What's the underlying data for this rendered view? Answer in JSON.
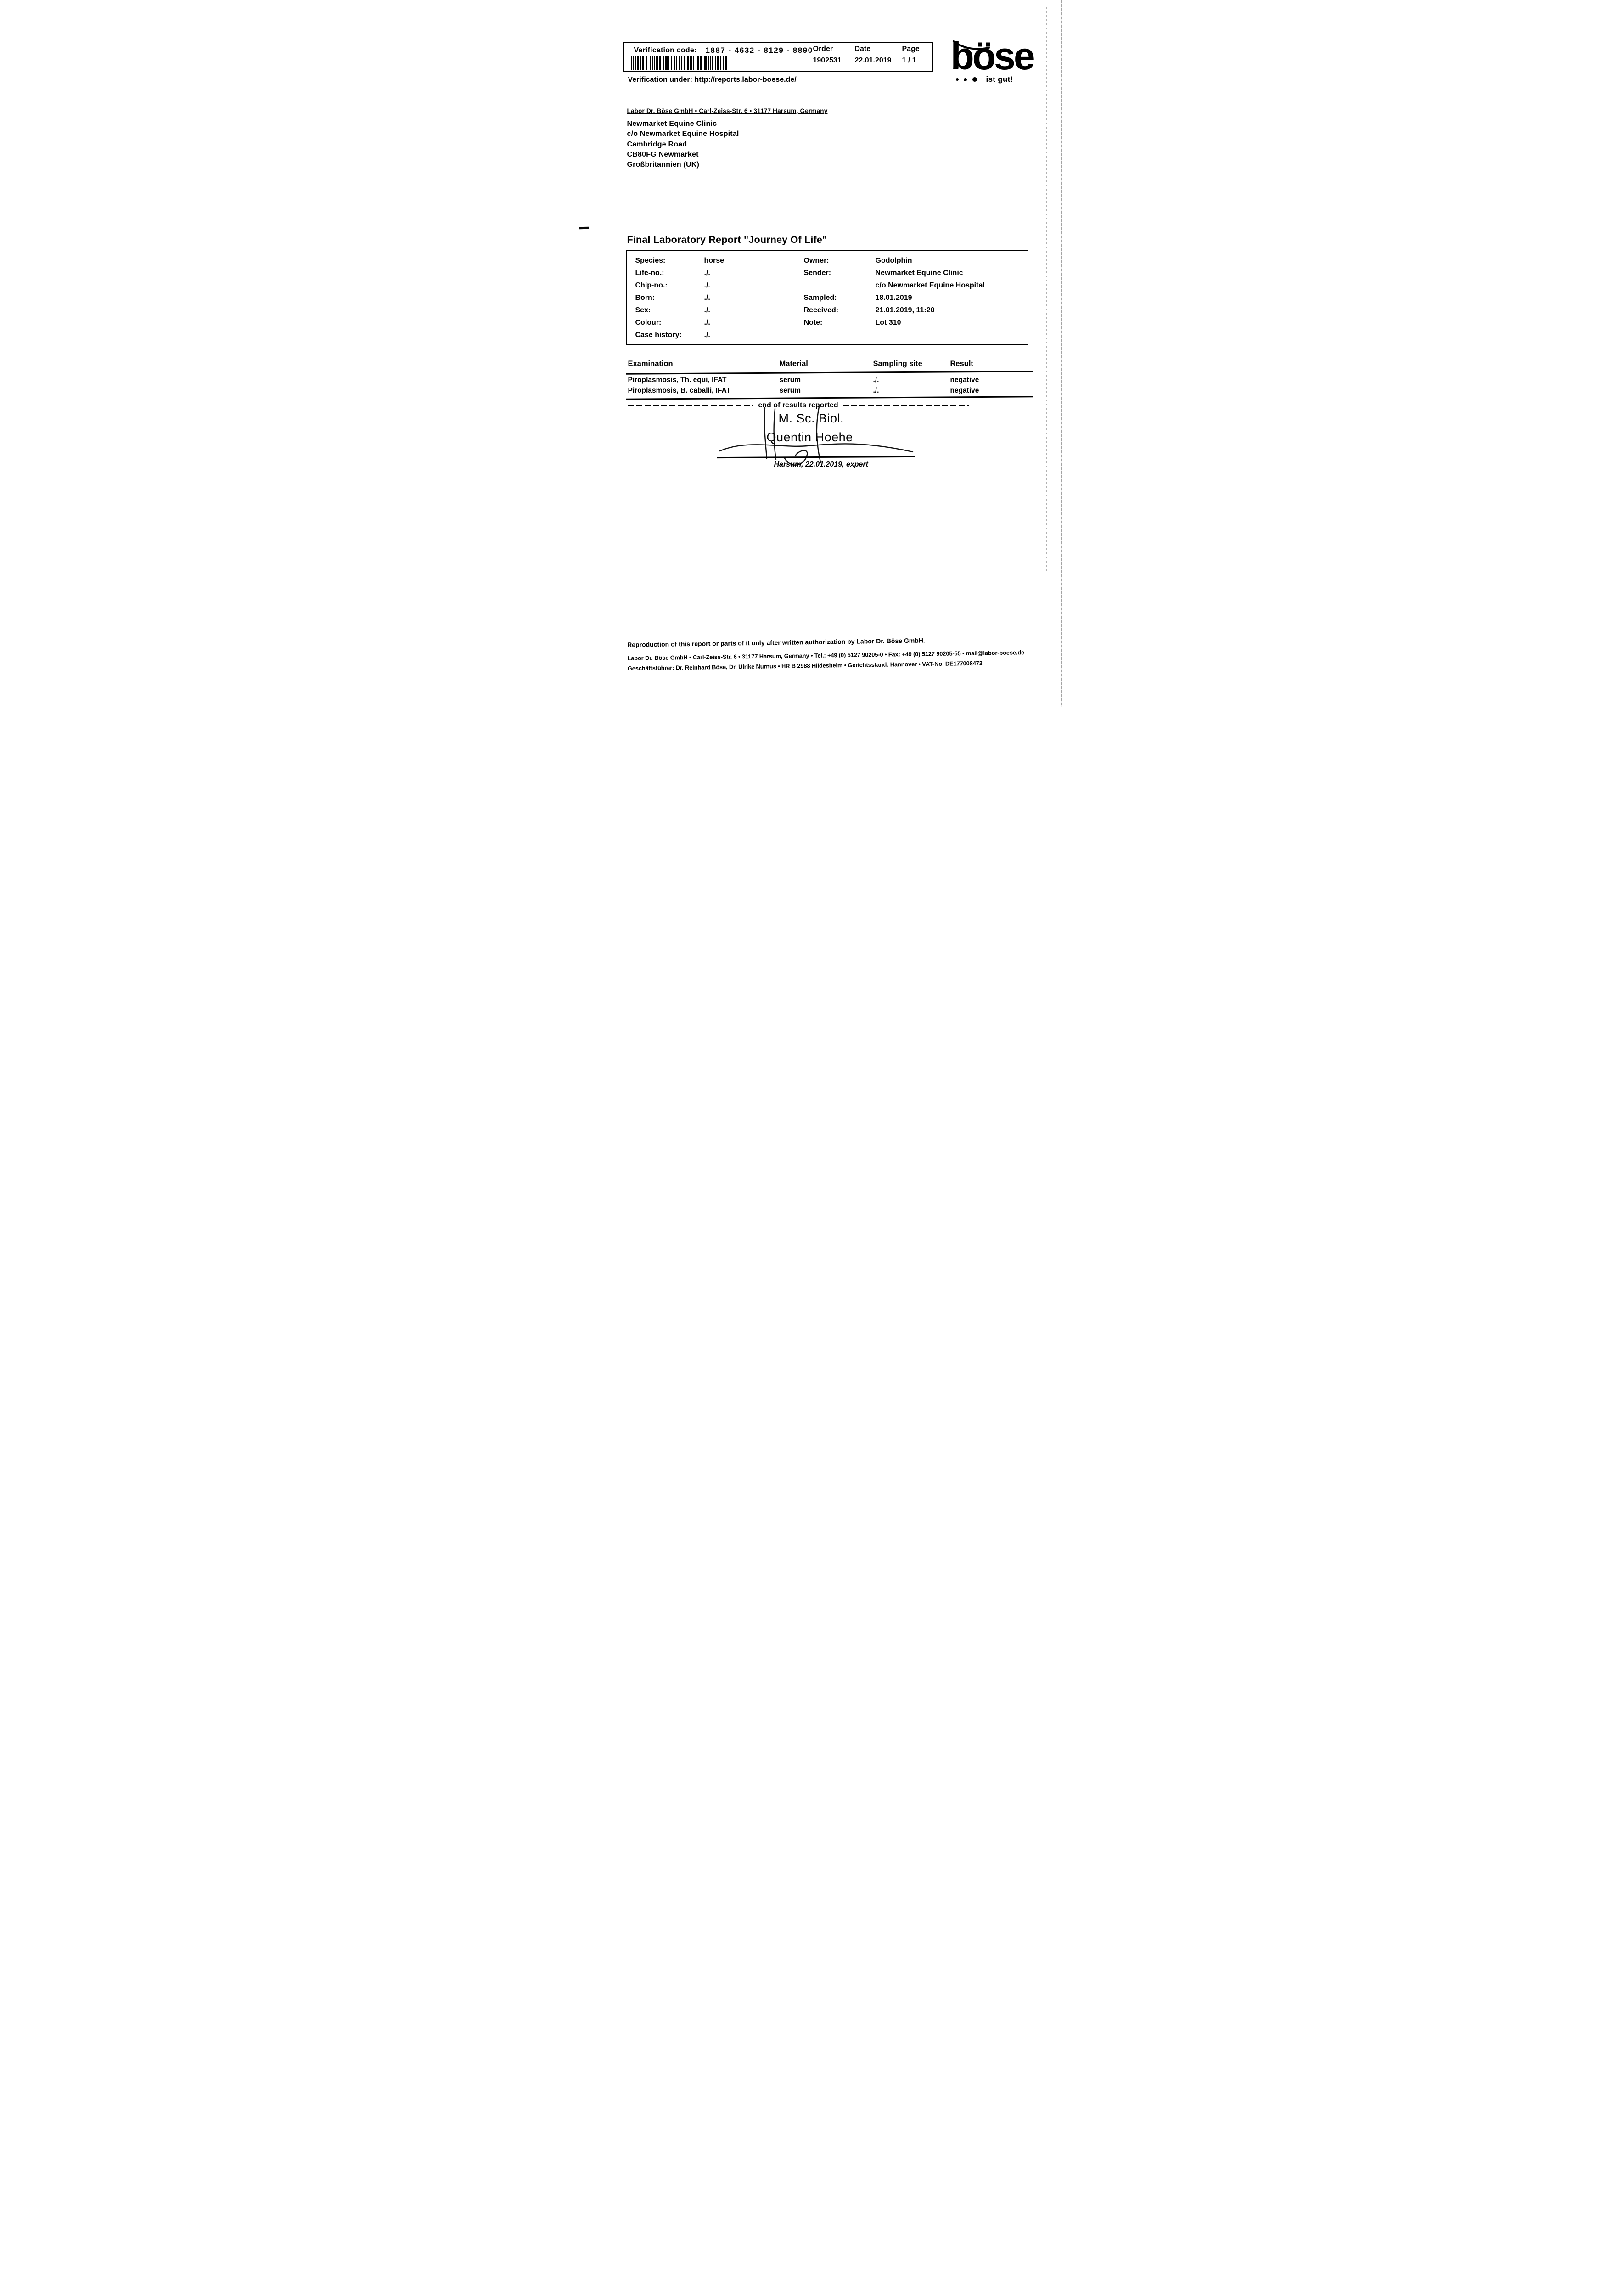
{
  "verification": {
    "label": "Verification code:",
    "code": "1887 - 4632 - 8129 - 8890",
    "under": "Verification under: http://reports.labor-boese.de/"
  },
  "order": {
    "label": "Order",
    "value": "1902531"
  },
  "date": {
    "label": "Date",
    "value": "22.01.2019"
  },
  "pageinfo": {
    "label": "Page",
    "value": "1 / 1"
  },
  "logo": {
    "wordmark": "böse",
    "tagline": "ist gut!"
  },
  "sender_line": "Labor Dr. Böse GmbH • Carl-Zeiss-Str. 6 • 31177 Harsum, Germany",
  "recipient": {
    "lines": [
      "Newmarket Equine Clinic",
      "c/o Newmarket Equine Hospital",
      "Cambridge Road",
      "CB80FG Newmarket",
      "Großbritannien (UK)"
    ]
  },
  "title": "Final Laboratory Report \"Journey Of Life\"",
  "specimen": {
    "left": [
      {
        "label": "Species:",
        "value": "horse"
      },
      {
        "label": "Life-no.:",
        "value": "./."
      },
      {
        "label": "Chip-no.:",
        "value": "./."
      },
      {
        "label": "Born:",
        "value": "./."
      },
      {
        "label": "Sex:",
        "value": "./."
      },
      {
        "label": "Colour:",
        "value": "./."
      },
      {
        "label": "Case history:",
        "value": "./."
      }
    ],
    "right": [
      {
        "label": "Owner:",
        "value": "Godolphin"
      },
      {
        "label": "Sender:",
        "value": "Newmarket Equine Clinic"
      },
      {
        "label": "",
        "value": "c/o Newmarket Equine Hospital"
      },
      {
        "label": "Sampled:",
        "value": "18.01.2019"
      },
      {
        "label": "Received:",
        "value": "21.01.2019, 11:20"
      },
      {
        "label": "Note:",
        "value": "Lot 310"
      }
    ]
  },
  "results": {
    "headers": [
      "Examination",
      "Material",
      "Sampling site",
      "Result"
    ],
    "rows": [
      {
        "examination": "Piroplasmosis, Th. equi, IFAT",
        "material": "serum",
        "sampling_site": "./.",
        "result": "negative"
      },
      {
        "examination": "Piroplasmosis, B. caballi, IFAT",
        "material": "serum",
        "sampling_site": "./.",
        "result": "negative"
      }
    ],
    "end_note": "end of results reported"
  },
  "signature": {
    "degree": "M. Sc. Biol.",
    "name": "Quentin Hoehe",
    "dateline": "Harsum, 22.01.2019, expert"
  },
  "footer": {
    "line1": "Reproduction of this report or parts of it only after written authorization by Labor Dr. Böse GmbH.",
    "line2": "Labor Dr. Böse GmbH • Carl-Zeiss-Str. 6 • 31177 Harsum, Germany • Tel.: +49 (0) 5127 90205-0 • Fax: +49 (0) 5127 90205-55 • mail@labor-boese.de",
    "line3": "Geschäftsführer: Dr. Reinhard Böse, Dr. Ulrike Nurnus • HR B 2988 Hildesheim • Gerichtsstand: Hannover • VAT-No. DE177008473"
  }
}
